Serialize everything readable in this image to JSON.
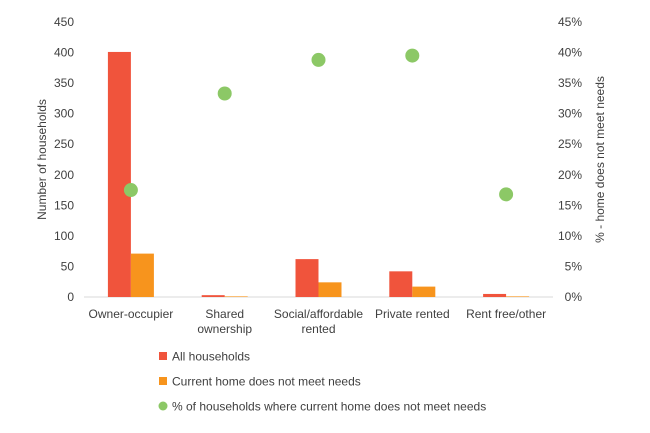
{
  "chart_data": {
    "type": "bar",
    "categories": [
      [
        "Owner-occupier"
      ],
      [
        "Shared",
        "ownership"
      ],
      [
        "Social/affordable",
        "rented"
      ],
      [
        "Private rented"
      ],
      [
        "Rent free/other"
      ]
    ],
    "series": [
      {
        "name": "All households",
        "axis": "left",
        "type": "bar",
        "color": "#F0543C",
        "values": [
          401,
          3,
          62,
          42,
          5
        ]
      },
      {
        "name": "Current home does not meet needs",
        "axis": "left",
        "type": "bar",
        "color": "#F7941D",
        "values": [
          71,
          1,
          24,
          17,
          1
        ]
      },
      {
        "name": "% of households where current home does not meet needs",
        "axis": "right",
        "type": "scatter",
        "color": "#8CC866",
        "values": [
          17.5,
          33.3,
          38.8,
          39.5,
          16.8
        ]
      }
    ],
    "ylabel": "Number  of households",
    "y2label": "% - home does not meet  needs",
    "ylim": [
      0,
      450
    ],
    "y2lim": [
      0,
      45
    ],
    "yticks": [
      "0",
      "50",
      "100",
      "150",
      "200",
      "250",
      "300",
      "350",
      "400",
      "450"
    ],
    "y2ticks": [
      "0%",
      "5%",
      "10%",
      "15%",
      "20%",
      "25%",
      "30%",
      "35%",
      "40%",
      "45%"
    ],
    "grid": false,
    "legend": "bottom"
  }
}
